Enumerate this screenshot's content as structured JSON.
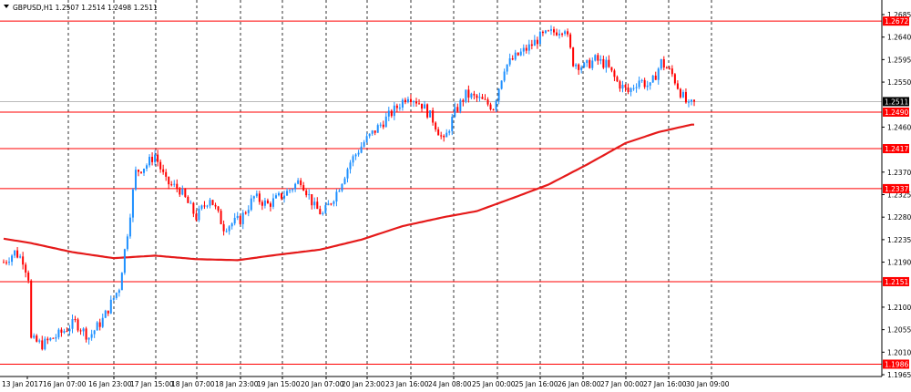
{
  "header": {
    "menu_icon": "triangle-down-icon",
    "title": "GBPUSD,H1  1.2507 1.2514 1.2498 1.2511"
  },
  "colors": {
    "bull": "#1E90FF",
    "bear": "#FF0000",
    "ma": "#E51A1A",
    "level": "#FF0000",
    "grid": "#000000",
    "current_price_bg": "#000000"
  },
  "chart_data": {
    "type": "candlestick",
    "symbol": "GBPUSD",
    "timeframe": "H1",
    "ohlc_header": {
      "open": 1.2507,
      "high": 1.2514,
      "low": 1.2498,
      "close": 1.2511
    },
    "y_ticks": [
      "1.2685",
      "1.2640",
      "1.2595",
      "1.2550",
      "1.2460",
      "1.2370",
      "1.2325",
      "1.2280",
      "1.2235",
      "1.2190",
      "1.2100",
      "1.2055",
      "1.2010",
      "1.1965"
    ],
    "x_ticks": [
      "13 Jan 2017",
      "16 Jan 07:00",
      "16 Jan 23:00",
      "17 Jan 15:00",
      "18 Jan 07:00",
      "18 Jan 23:00",
      "19 Jan 15:00",
      "20 Jan 07:00",
      "20 Jan 23:00",
      "23 Jan 16:00",
      "24 Jan 08:00",
      "25 Jan 00:00",
      "25 Jan 16:00",
      "26 Jan 08:00",
      "27 Jan 00:00",
      "27 Jan 16:00",
      "30 Jan 09:00"
    ],
    "ylim": [
      1.1965,
      1.2685
    ],
    "current_price": "1.2511",
    "levels": [
      "1.2672",
      "1.2490",
      "1.2417",
      "1.2337",
      "1.2151",
      "1.1986"
    ],
    "ma_anchor_points": [
      {
        "bar": 0,
        "price": 1.2237
      },
      {
        "bar": 10,
        "price": 1.2228
      },
      {
        "bar": 25,
        "price": 1.221
      },
      {
        "bar": 40,
        "price": 1.2198
      },
      {
        "bar": 55,
        "price": 1.2203
      },
      {
        "bar": 70,
        "price": 1.2196
      },
      {
        "bar": 85,
        "price": 1.2194
      },
      {
        "bar": 100,
        "price": 1.2205
      },
      {
        "bar": 115,
        "price": 1.2215
      },
      {
        "bar": 130,
        "price": 1.2235
      },
      {
        "bar": 145,
        "price": 1.2262
      },
      {
        "bar": 160,
        "price": 1.228
      },
      {
        "bar": 172,
        "price": 1.2292
      },
      {
        "bar": 185,
        "price": 1.2318
      },
      {
        "bar": 198,
        "price": 1.2345
      },
      {
        "bar": 212,
        "price": 1.2385
      },
      {
        "bar": 226,
        "price": 1.2428
      },
      {
        "bar": 238,
        "price": 1.245
      },
      {
        "bar": 250,
        "price": 1.2465
      }
    ],
    "price_path": [
      {
        "bar": 0,
        "price": 1.219
      },
      {
        "bar": 4,
        "price": 1.221
      },
      {
        "bar": 7,
        "price": 1.2195
      },
      {
        "bar": 9,
        "price": 1.216
      },
      {
        "bar": 10,
        "price": 1.2035
      },
      {
        "bar": 14,
        "price": 1.2025
      },
      {
        "bar": 20,
        "price": 1.2045
      },
      {
        "bar": 26,
        "price": 1.207
      },
      {
        "bar": 31,
        "price": 1.204
      },
      {
        "bar": 36,
        "price": 1.2075
      },
      {
        "bar": 42,
        "price": 1.214
      },
      {
        "bar": 45,
        "price": 1.225
      },
      {
        "bar": 48,
        "price": 1.237
      },
      {
        "bar": 52,
        "price": 1.2385
      },
      {
        "bar": 55,
        "price": 1.2405
      },
      {
        "bar": 59,
        "price": 1.235
      },
      {
        "bar": 64,
        "price": 1.2335
      },
      {
        "bar": 70,
        "price": 1.228
      },
      {
        "bar": 75,
        "price": 1.232
      },
      {
        "bar": 80,
        "price": 1.226
      },
      {
        "bar": 86,
        "price": 1.2275
      },
      {
        "bar": 91,
        "price": 1.232
      },
      {
        "bar": 96,
        "price": 1.2305
      },
      {
        "bar": 103,
        "price": 1.233
      },
      {
        "bar": 108,
        "price": 1.2355
      },
      {
        "bar": 113,
        "price": 1.23
      },
      {
        "bar": 116,
        "price": 1.2285
      },
      {
        "bar": 121,
        "price": 1.233
      },
      {
        "bar": 126,
        "price": 1.239
      },
      {
        "bar": 131,
        "price": 1.243
      },
      {
        "bar": 137,
        "price": 1.2465
      },
      {
        "bar": 143,
        "price": 1.25
      },
      {
        "bar": 147,
        "price": 1.2525
      },
      {
        "bar": 152,
        "price": 1.2505
      },
      {
        "bar": 156,
        "price": 1.2475
      },
      {
        "bar": 160,
        "price": 1.243
      },
      {
        "bar": 164,
        "price": 1.249
      },
      {
        "bar": 168,
        "price": 1.2525
      },
      {
        "bar": 173,
        "price": 1.2515
      },
      {
        "bar": 178,
        "price": 1.25
      },
      {
        "bar": 182,
        "price": 1.258
      },
      {
        "bar": 186,
        "price": 1.26
      },
      {
        "bar": 191,
        "price": 1.262
      },
      {
        "bar": 195,
        "price": 1.264
      },
      {
        "bar": 200,
        "price": 1.265
      },
      {
        "bar": 204,
        "price": 1.266
      },
      {
        "bar": 207,
        "price": 1.259
      },
      {
        "bar": 211,
        "price": 1.258
      },
      {
        "bar": 215,
        "price": 1.2595
      },
      {
        "bar": 219,
        "price": 1.2585
      },
      {
        "bar": 223,
        "price": 1.255
      },
      {
        "bar": 227,
        "price": 1.253
      },
      {
        "bar": 231,
        "price": 1.2555
      },
      {
        "bar": 235,
        "price": 1.254
      },
      {
        "bar": 239,
        "price": 1.259
      },
      {
        "bar": 243,
        "price": 1.2565
      },
      {
        "bar": 246,
        "price": 1.253
      },
      {
        "bar": 249,
        "price": 1.25
      },
      {
        "bar": 251,
        "price": 1.2511
      }
    ],
    "grid": true
  }
}
